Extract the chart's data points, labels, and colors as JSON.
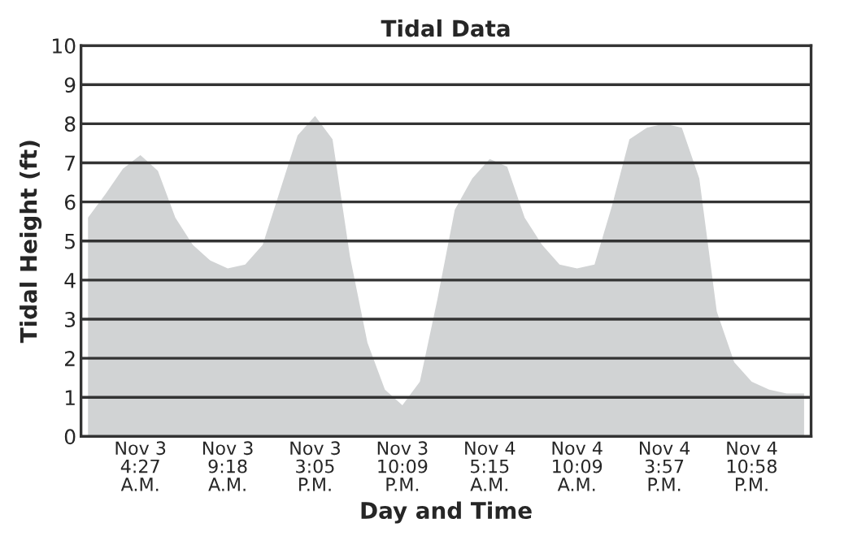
{
  "chart_data": {
    "type": "area",
    "title": "Tidal Data",
    "xlabel": "Day and Time",
    "ylabel": "Tidal Height (ft)",
    "categories": [
      null,
      null,
      null,
      "Nov 3\n4:27\nA.M.",
      null,
      null,
      null,
      null,
      "Nov 3\n9:18\nA.M.",
      null,
      null,
      null,
      null,
      "Nov 3\n3:05\nP.M.",
      null,
      null,
      null,
      null,
      "Nov 3\n10:09\nP.M.",
      null,
      null,
      null,
      null,
      "Nov 4\n5:15\nA.M.",
      null,
      null,
      null,
      null,
      "Nov 4\n10:09\nA.M.",
      null,
      null,
      null,
      null,
      "Nov 4\n3:57\nP.M.",
      null,
      null,
      null,
      null,
      "Nov 4\n10:58\nP.M.",
      null,
      null,
      null
    ],
    "series": [
      {
        "color": "#d1d3d4",
        "values": [
          5.6,
          6.2,
          6.85,
          7.2,
          6.8,
          5.6,
          4.9,
          4.5,
          4.3,
          4.4,
          4.9,
          6.3,
          7.7,
          8.2,
          7.6,
          4.6,
          2.4,
          1.2,
          0.8,
          1.4,
          3.5,
          5.8,
          6.6,
          7.1,
          6.9,
          5.6,
          4.9,
          4.4,
          4.3,
          4.4,
          5.9,
          7.6,
          7.9,
          8.0,
          7.9,
          6.6,
          3.2,
          1.9,
          1.4,
          1.2,
          1.1,
          1.1
        ]
      }
    ],
    "ylim": [
      0,
      10
    ],
    "yticks": [
      0,
      1,
      2,
      3,
      4,
      5,
      6,
      7,
      8,
      9,
      10
    ],
    "grid": "y",
    "legend": false
  }
}
